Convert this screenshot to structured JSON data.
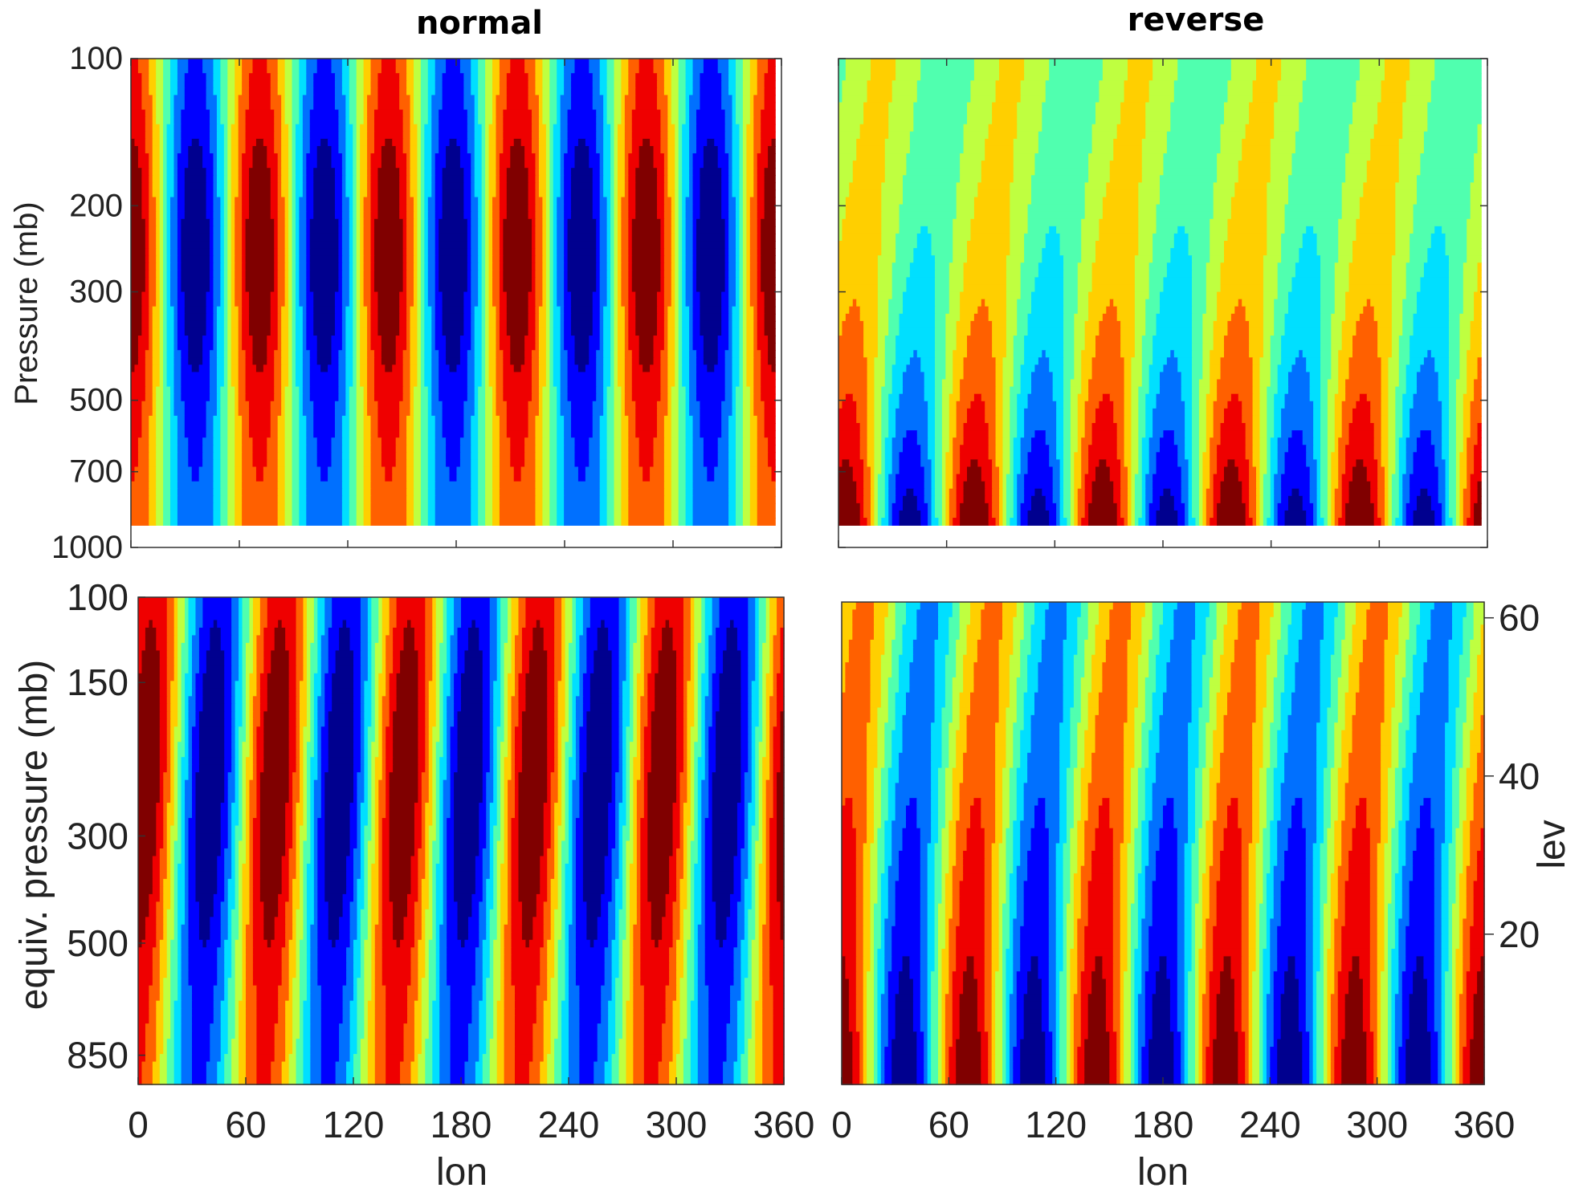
{
  "chart_data": [
    {
      "type": "heatmap",
      "panel": "top-left",
      "title": "normal",
      "xlabel": "",
      "ylabel": "Pressure (mb)",
      "y_scale": "log",
      "xlim": [
        0,
        360
      ],
      "ylim": [
        1000,
        100
      ],
      "x_ticks": [
        "0",
        "60",
        "120",
        "180",
        "240",
        "300",
        "360"
      ],
      "x_ticklabels_visible": false,
      "y_ticks": [
        100,
        200,
        300,
        500,
        700,
        1000
      ],
      "y_ticklabels": [
        "100",
        "200",
        "300",
        "500",
        "700",
        "1000"
      ],
      "data_pressure_range": [
        100,
        900
      ],
      "wavenumber": 5,
      "wave_pattern": "vertically stacked, no phase tilt, max amplitude near 250 mb"
    },
    {
      "type": "heatmap",
      "panel": "top-right",
      "title": "reverse",
      "xlabel": "",
      "ylabel": "",
      "y_scale": "log",
      "xlim": [
        0,
        360
      ],
      "ylim": [
        1000,
        100
      ],
      "x_ticks": [
        "0",
        "60",
        "120",
        "180",
        "240",
        "300",
        "360"
      ],
      "x_ticklabels_visible": false,
      "y_ticks": [
        100,
        200,
        300,
        500,
        700,
        1000
      ],
      "y_ticklabels_visible": false,
      "data_pressure_range": [
        100,
        900
      ],
      "wavenumber": 5,
      "wave_pattern": "phase tilts westward with height, max amplitude near surface"
    },
    {
      "type": "heatmap",
      "panel": "bottom-left",
      "title": "",
      "xlabel": "lon",
      "ylabel": "equiv. pressure (mb)",
      "xlim": [
        0,
        360
      ],
      "x_ticks": [
        "0",
        "60",
        "120",
        "180",
        "240",
        "300",
        "360"
      ],
      "y_ticklabels": [
        "100",
        "150",
        "300",
        "500",
        "850"
      ],
      "wavenumber": 5,
      "wave_pattern": "slight westward tilt with height, max amplitude mid-levels"
    },
    {
      "type": "heatmap",
      "panel": "bottom-right",
      "title": "",
      "xlabel": "lon",
      "ylabel": "lev",
      "ylabel_side": "right",
      "xlim": [
        0,
        360
      ],
      "ylim": [
        1,
        62
      ],
      "x_ticks": [
        "0",
        "60",
        "120",
        "180",
        "240",
        "300",
        "360"
      ],
      "y_ticklabels": [
        "60",
        "40",
        "20"
      ],
      "wavenumber": 5,
      "wave_pattern": "phase tilts westward with height, max amplitude at lowest levels"
    }
  ],
  "colormap": [
    "#00008f",
    "#0000ff",
    "#0070ff",
    "#00dfff",
    "#50ffaf",
    "#bfff40",
    "#ffcf00",
    "#ff6000",
    "#ef0000",
    "#800000"
  ]
}
